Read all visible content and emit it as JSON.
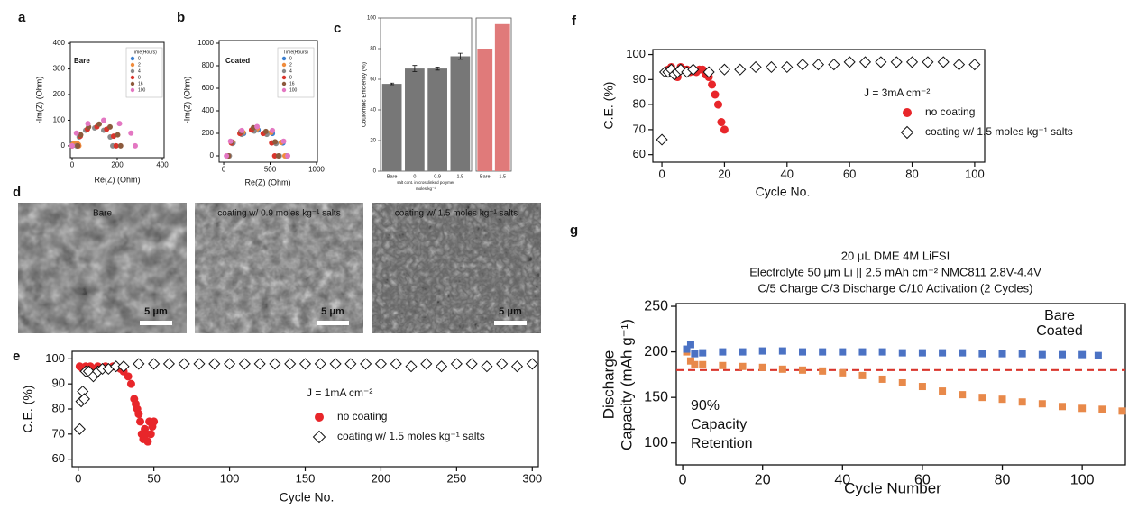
{
  "chart_data": [
    {
      "type": "scatter",
      "panel": "a",
      "title": "Bare",
      "xlabel": "Re(Z) (Ohm)",
      "ylabel": "-Im(Z) (Ohm)",
      "legend_title": "Time(Hours)",
      "xlim": [
        -8,
        408
      ],
      "ylim": [
        -46,
        404
      ],
      "xticks": [
        0,
        200,
        400
      ],
      "yticks": [
        0,
        100,
        200,
        300,
        400
      ],
      "series": [
        {
          "name": "0",
          "color": "#3b7fd0",
          "marker": "circle",
          "x": [
            0,
            1,
            5,
            10,
            15,
            19,
            20
          ],
          "values": [
            0,
            5,
            9,
            10,
            9,
            5,
            0
          ]
        },
        {
          "name": "2",
          "color": "#f08c3c",
          "marker": "circle",
          "x": [
            0,
            2,
            8,
            15,
            23,
            28,
            30
          ],
          "values": [
            0,
            5,
            9,
            10,
            9,
            5,
            0
          ]
        },
        {
          "name": "4",
          "color": "#8a8a8a",
          "marker": "circle",
          "x": [
            20,
            31,
            60,
            100,
            140,
            169,
            180
          ],
          "values": [
            0,
            35,
            61,
            70,
            61,
            35,
            0
          ]
        },
        {
          "name": "8",
          "color": "#d9342b",
          "marker": "circle",
          "x": [
            25,
            36,
            68,
            110,
            153,
            184,
            195
          ],
          "values": [
            0,
            38,
            65,
            75,
            65,
            38,
            0
          ]
        },
        {
          "name": "16",
          "color": "#8c5a3c",
          "marker": "circle",
          "x": [
            25,
            38,
            73,
            120,
            168,
            202,
            215
          ],
          "values": [
            0,
            43,
            74,
            85,
            74,
            43,
            0
          ]
        },
        {
          "name": "100",
          "color": "#e377c2",
          "marker": "circle",
          "x": [
            0,
            19,
            70,
            140,
            210,
            261,
            280
          ],
          "values": [
            0,
            50,
            87,
            100,
            87,
            50,
            0
          ]
        }
      ]
    },
    {
      "type": "scatter",
      "panel": "b",
      "title": "Coated",
      "xlabel": "Re(Z) (Ohm)",
      "ylabel": "-Im(Z) (Ohm)",
      "legend_title": "Time(Hours)",
      "xlim": [
        -49,
        1010
      ],
      "ylim": [
        -56,
        1024
      ],
      "xticks": [
        0,
        500,
        1000
      ],
      "yticks": [
        0,
        200,
        400,
        600,
        800,
        1000
      ],
      "series": [
        {
          "name": "0",
          "color": "#3b7fd0",
          "marker": "circle",
          "x": [
            60,
            102,
            215,
            370,
            525,
            638,
            680
          ],
          "values": [
            0,
            115,
            199,
            230,
            199,
            115,
            0
          ]
        },
        {
          "name": "2",
          "color": "#f08c3c",
          "marker": "circle",
          "x": [
            60,
            100,
            210,
            360,
            510,
            620,
            660
          ],
          "values": [
            0,
            120,
            208,
            240,
            208,
            120,
            0
          ]
        },
        {
          "name": "4",
          "color": "#8a8a8a",
          "marker": "circle",
          "x": [
            60,
            96,
            195,
            330,
            465,
            564,
            600
          ],
          "values": [
            0,
            110,
            191,
            220,
            191,
            110,
            0
          ]
        },
        {
          "name": "8",
          "color": "#d9342b",
          "marker": "circle",
          "x": [
            50,
            83,
            175,
            300,
            425,
            517,
            550
          ],
          "values": [
            0,
            115,
            199,
            230,
            199,
            115,
            0
          ]
        },
        {
          "name": "16",
          "color": "#8c5a3c",
          "marker": "circle",
          "x": [
            50,
            86,
            185,
            320,
            455,
            554,
            590
          ],
          "values": [
            0,
            125,
            217,
            250,
            217,
            125,
            0
          ]
        },
        {
          "name": "100",
          "color": "#e377c2",
          "marker": "circle",
          "x": [
            30,
            74,
            195,
            360,
            525,
            646,
            690
          ],
          "values": [
            0,
            130,
            225,
            260,
            225,
            130,
            0
          ]
        }
      ]
    },
    {
      "type": "bar",
      "panel": "c",
      "ylabel": "Coulombic Efficiency (%)",
      "xlabel": [
        "salt cont. in crosslinked polymer",
        "moles kg⁻¹"
      ],
      "categories": [
        "Bare",
        "0",
        "0.9",
        "1.5",
        "Bare",
        "1.5"
      ],
      "values": [
        57,
        67,
        67,
        75,
        80,
        96
      ],
      "errors": [
        0.5,
        2,
        1,
        2,
        null,
        null
      ],
      "colors": [
        "#777777",
        "#777777",
        "#777777",
        "#777777",
        "#e07a7a",
        "#e07a7a"
      ],
      "ylim": [
        0,
        100
      ],
      "yticks": [
        0,
        20,
        40,
        60,
        80,
        100
      ]
    },
    {
      "type": "scatter",
      "panel": "e",
      "xlabel": "Cycle No.",
      "ylabel": "C.E. (%)",
      "annotation": "J = 1mA cm⁻²",
      "xlim": [
        -4,
        304
      ],
      "ylim": [
        57,
        103
      ],
      "xticks": [
        0,
        50,
        100,
        150,
        200,
        250,
        300
      ],
      "yticks": [
        60,
        70,
        80,
        90,
        100
      ],
      "series": [
        {
          "name": "no coating",
          "color": "#e8262a",
          "marker": "circle",
          "x": [
            1,
            3,
            5,
            8,
            10,
            13,
            15,
            18,
            20,
            23,
            25,
            28,
            30,
            33,
            35,
            37,
            38,
            39,
            40,
            41,
            42,
            43,
            44,
            45,
            46,
            47,
            48,
            49,
            50
          ],
          "values": [
            97,
            96,
            97,
            97,
            96,
            97,
            96,
            97,
            96,
            97,
            97,
            96,
            95,
            93,
            90,
            84,
            82,
            80,
            78,
            75,
            70,
            68,
            72,
            70,
            67,
            75,
            70,
            73,
            75
          ]
        },
        {
          "name": "coating w/ 1.5 moles kg⁻¹ salts",
          "color": "#111111",
          "marker": "diamond",
          "x": [
            1,
            2,
            3,
            4,
            5,
            7,
            10,
            13,
            16,
            20,
            25,
            30,
            40,
            50,
            60,
            70,
            80,
            90,
            100,
            110,
            120,
            130,
            140,
            150,
            160,
            170,
            180,
            190,
            200,
            210,
            220,
            230,
            240,
            250,
            260,
            270,
            280,
            290,
            300
          ],
          "values": [
            72,
            83,
            87,
            84,
            95,
            95,
            93,
            95,
            96,
            96,
            97,
            97,
            98,
            98,
            98,
            98,
            98,
            98,
            98,
            98,
            98,
            98,
            98,
            98,
            98,
            98,
            98,
            98,
            98,
            98,
            97,
            98,
            97,
            98,
            98,
            97,
            98,
            97,
            98
          ]
        }
      ]
    },
    {
      "type": "scatter",
      "panel": "f",
      "xlabel": "Cycle No.",
      "ylabel": "C.E. (%)",
      "annotation": "J = 3mA cm⁻²",
      "xlim": [
        -2.9,
        103.2
      ],
      "ylim": [
        57,
        102
      ],
      "xticks": [
        0,
        20,
        40,
        60,
        80,
        100
      ],
      "yticks": [
        60,
        70,
        80,
        90,
        100
      ],
      "series": [
        {
          "name": "no coating",
          "color": "#e8262a",
          "marker": "circle",
          "x": [
            1,
            2,
            3,
            4,
            5,
            6,
            7,
            8,
            9,
            10,
            11,
            12,
            13,
            14,
            15,
            16,
            17,
            18,
            19,
            20
          ],
          "values": [
            93,
            94,
            95,
            92,
            91,
            95,
            94,
            94,
            93,
            94,
            93,
            94,
            94,
            92,
            91,
            88,
            84,
            80,
            73,
            70
          ]
        },
        {
          "name": "coating w/ 1.5 moles kg⁻¹ salts",
          "color": "#111111",
          "marker": "diamond",
          "x": [
            0,
            1,
            2,
            3,
            4,
            5,
            6,
            8,
            10,
            15,
            20,
            25,
            30,
            35,
            40,
            45,
            50,
            55,
            60,
            65,
            70,
            75,
            80,
            85,
            90,
            95,
            100
          ],
          "values": [
            66,
            93,
            93,
            94,
            92,
            93,
            94,
            93,
            94,
            93,
            94,
            94,
            95,
            95,
            95,
            96,
            96,
            96,
            97,
            97,
            97,
            97,
            97,
            97,
            97,
            96,
            96
          ]
        }
      ]
    },
    {
      "type": "scatter",
      "panel": "g",
      "title": [
        "20 μL DME 4M LiFSI",
        "Electrolyte 50 μm Li || 2.5 mAh cm⁻² NMC811 2.8V-4.4V",
        "C/5 Charge C/3 Discharge C/10 Activation (2 Cycles)"
      ],
      "xlabel": "Cycle Number",
      "ylabel": [
        "Discharge",
        "Capacity (mAh g⁻¹)"
      ],
      "annotation": [
        "90%",
        "Capacity",
        "Retention"
      ],
      "annotation_color": "#d9342b",
      "hline": {
        "value": 180,
        "color": "#d9342b"
      },
      "xlim": [
        -1.6,
        110.8
      ],
      "ylim": [
        76,
        253
      ],
      "xticks": [
        0,
        20,
        40,
        60,
        80,
        100
      ],
      "yticks": [
        100,
        150,
        200,
        250
      ],
      "series": [
        {
          "name": "Bare",
          "color": "#e8894a",
          "marker": "square",
          "x": [
            1,
            2,
            3,
            5,
            10,
            15,
            20,
            25,
            30,
            35,
            40,
            45,
            50,
            55,
            60,
            65,
            70,
            75,
            80,
            85,
            90,
            95,
            100,
            105,
            110
          ],
          "values": [
            200,
            190,
            186,
            186,
            185,
            184,
            183,
            181,
            180,
            179,
            177,
            174,
            170,
            166,
            162,
            157,
            153,
            150,
            148,
            145,
            143,
            140,
            138,
            137,
            135
          ]
        },
        {
          "name": "Coated",
          "color": "#4b72c4",
          "marker": "square",
          "x": [
            1,
            2,
            3,
            5,
            10,
            15,
            20,
            25,
            30,
            35,
            40,
            45,
            50,
            55,
            60,
            65,
            70,
            75,
            80,
            85,
            90,
            95,
            100,
            104
          ],
          "values": [
            203,
            208,
            198,
            199,
            200,
            200,
            201,
            201,
            200,
            200,
            200,
            200,
            200,
            199,
            199,
            199,
            199,
            198,
            198,
            198,
            197,
            197,
            197,
            196
          ]
        }
      ]
    }
  ],
  "sem": {
    "panel": "d",
    "images": [
      {
        "caption": "Bare",
        "scale_bar": "5 μm"
      },
      {
        "caption": "coating w/ 0.9 moles kg⁻¹ salts",
        "scale_bar": "5 μm"
      },
      {
        "caption": "coating w/ 1.5 moles kg⁻¹ salts",
        "scale_bar": "5 μm"
      }
    ]
  }
}
